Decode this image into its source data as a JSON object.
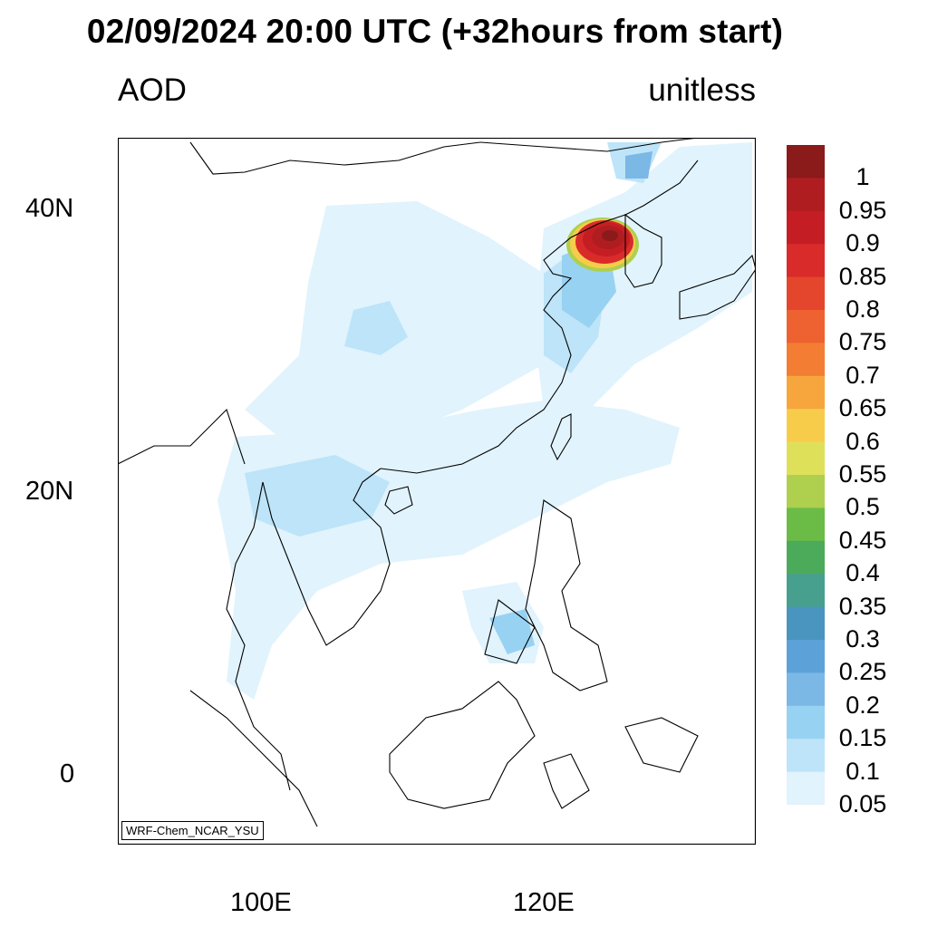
{
  "title": "02/09/2024 20:00 UTC (+32hours from start)",
  "variable_label": "AOD",
  "unit_label": "unitless",
  "credit": "WRF-Chem_NCAR_YSU",
  "axes": {
    "lat_labels": [
      "40N",
      "20N",
      "0"
    ],
    "lon_labels": [
      "100E",
      "120E"
    ]
  },
  "colorbar": {
    "labels": [
      "1",
      "0.95",
      "0.9",
      "0.85",
      "0.8",
      "0.75",
      "0.7",
      "0.65",
      "0.6",
      "0.55",
      "0.5",
      "0.45",
      "0.4",
      "0.35",
      "0.3",
      "0.25",
      "0.2",
      "0.15",
      "0.1",
      "0.05"
    ],
    "colors": [
      "#8b1a1a",
      "#b01d20",
      "#c41e24",
      "#d92b2a",
      "#e3462c",
      "#ee6130",
      "#f37e33",
      "#f6a63d",
      "#f8cc4b",
      "#dfe05a",
      "#aed04e",
      "#6bbc47",
      "#4caa5b",
      "#47a08e",
      "#4a94c0",
      "#5ca2d8",
      "#7cb8e6",
      "#98d2f2",
      "#bde4f8",
      "#e1f3fc"
    ]
  },
  "colors": {
    "coast": "#000000",
    "frame": "#000000"
  }
}
